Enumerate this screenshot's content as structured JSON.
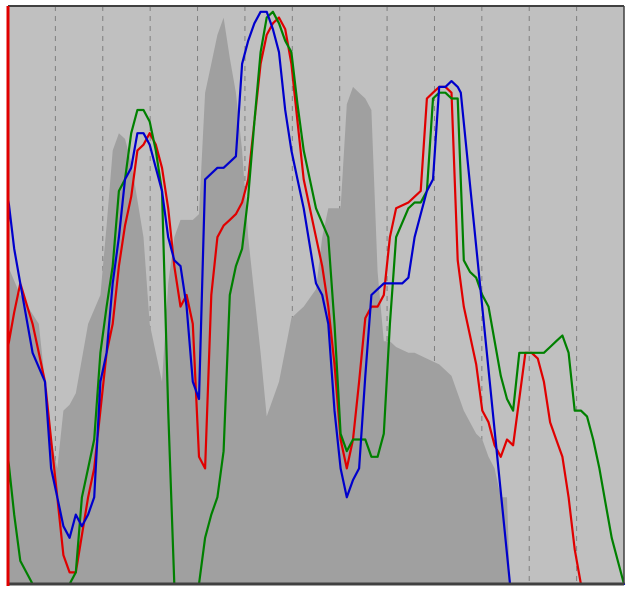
{
  "chart_data": {
    "type": "area",
    "title": "",
    "xlabel": "",
    "ylabel": "",
    "grid": {
      "vertical": true,
      "style": "dashed"
    },
    "legend": "none",
    "xlim": [
      0,
      100
    ],
    "ylim": [
      0,
      100
    ],
    "colors": {
      "plot_background": "#c0c0c0",
      "area_fill": "#a0a0a0",
      "grid": "#707070",
      "left_axis": "#e00000",
      "bottom_axis": "#404040",
      "top_axis": "#404040",
      "right_axis": "#404040"
    },
    "area": {
      "x": [
        0,
        2,
        5,
        7,
        8,
        9,
        10,
        11,
        13,
        15,
        16,
        17,
        18,
        19,
        20,
        22,
        23,
        24,
        25,
        26,
        27,
        28,
        29,
        30,
        31,
        32,
        33,
        34,
        35,
        36,
        37,
        38,
        39,
        40,
        41,
        42,
        44,
        46,
        47,
        48,
        50,
        51,
        52,
        53,
        54,
        55,
        56,
        57,
        58,
        59,
        60,
        61,
        62,
        63,
        65,
        66,
        68,
        70,
        71,
        72,
        74,
        75,
        76,
        77,
        78,
        79,
        80,
        81,
        81.5
      ],
      "y": [
        55,
        50,
        45,
        25,
        20,
        30,
        31,
        33,
        45,
        50,
        62,
        75,
        78,
        77,
        73,
        60,
        45,
        40,
        35,
        52,
        60,
        63,
        63,
        63,
        64,
        85,
        90,
        95,
        98,
        91,
        85,
        75,
        60,
        50,
        40,
        29,
        35,
        46,
        47,
        48,
        51,
        60,
        65,
        65,
        65,
        83,
        86,
        85,
        84,
        82,
        54,
        42,
        42,
        41,
        40,
        40,
        39,
        38,
        37,
        36,
        30,
        28,
        26,
        25,
        22,
        20,
        15,
        15,
        0
      ]
    },
    "series": [
      {
        "color": "#e00000",
        "x": [
          0,
          1,
          2,
          4,
          6,
          7,
          8,
          9,
          10,
          11,
          13,
          14,
          15,
          16,
          17,
          18,
          19,
          20,
          21,
          22,
          23,
          24,
          25,
          26,
          27,
          28,
          29,
          30,
          31,
          32,
          33,
          34,
          35,
          36,
          37,
          38,
          39,
          40,
          41,
          42,
          43,
          44,
          45,
          46,
          47,
          48,
          50,
          51,
          52,
          53,
          54,
          55,
          56,
          57,
          58,
          59,
          60,
          61,
          62,
          63,
          65,
          66,
          67,
          68,
          69,
          70,
          71,
          72,
          73,
          74,
          75,
          76,
          77,
          78,
          79,
          80,
          81,
          82,
          84,
          85,
          86,
          87,
          88,
          89,
          90,
          91,
          92,
          93,
          94
        ],
        "y": [
          41,
          47,
          52,
          45,
          35,
          25,
          15,
          5,
          2,
          2,
          15,
          20,
          30,
          40,
          45,
          55,
          62,
          67,
          75,
          76,
          78,
          76,
          72,
          65,
          55,
          48,
          50,
          45,
          22,
          20,
          50,
          60,
          62,
          63,
          64,
          66,
          70,
          80,
          90,
          95,
          97,
          98,
          96,
          90,
          80,
          70,
          60,
          55,
          48,
          38,
          25,
          20,
          25,
          35,
          46,
          48,
          48,
          50,
          60,
          65,
          66,
          67,
          68,
          84,
          85,
          86,
          86,
          85,
          56,
          48,
          43,
          38,
          30,
          28,
          24,
          22,
          25,
          24,
          40,
          40,
          39,
          35,
          28,
          25,
          22,
          15,
          6,
          0,
          0
        ]
      },
      {
        "color": "#008000",
        "x": [
          0,
          1,
          2,
          4,
          6,
          8,
          9,
          10,
          11,
          12,
          13,
          14,
          15,
          16,
          17,
          18,
          19,
          20,
          21,
          22,
          23,
          24,
          25,
          26,
          27,
          28,
          29,
          30,
          31,
          32,
          33,
          34,
          35,
          36,
          37,
          38,
          39,
          40,
          41,
          42,
          43,
          44,
          45,
          46,
          47,
          48,
          50,
          52,
          53,
          54,
          55,
          56,
          57,
          58,
          59,
          60,
          61,
          62,
          63,
          65,
          66,
          67,
          68,
          69,
          70,
          71,
          72,
          73,
          74,
          75,
          76,
          77,
          78,
          80,
          81,
          82,
          83,
          84,
          85,
          86,
          87,
          88,
          89,
          90,
          91,
          92,
          93,
          94,
          95,
          96,
          97,
          98,
          99,
          100
        ],
        "y": [
          22,
          12,
          4,
          0,
          0,
          0,
          0,
          0,
          2,
          15,
          20,
          25,
          40,
          48,
          55,
          68,
          70,
          78,
          82,
          82,
          80,
          75,
          68,
          30,
          0,
          0,
          0,
          0,
          0,
          8,
          12,
          15,
          23,
          50,
          55,
          58,
          67,
          80,
          92,
          98,
          99,
          97,
          94,
          92,
          83,
          75,
          65,
          60,
          45,
          26,
          23,
          25,
          25,
          25,
          22,
          22,
          26,
          45,
          60,
          65,
          66,
          66,
          68,
          84,
          85,
          85,
          84,
          84,
          56,
          54,
          53,
          50,
          48,
          36,
          32,
          30,
          40,
          40,
          40,
          40,
          40,
          41,
          42,
          43,
          40,
          30,
          30,
          29,
          25,
          20,
          14,
          8,
          4,
          0
        ]
      },
      {
        "color": "#0000cc",
        "x": [
          0,
          1,
          2,
          4,
          6,
          7,
          8,
          9,
          10,
          11,
          12,
          13,
          14,
          15,
          16,
          17,
          18,
          19,
          20,
          21,
          22,
          23,
          24,
          25,
          26,
          27,
          28,
          29,
          30,
          31,
          32,
          33,
          34,
          35,
          36,
          37,
          38,
          39,
          40,
          41,
          42,
          43,
          44,
          45,
          46,
          47,
          48,
          50,
          51,
          52,
          53,
          54,
          55,
          56,
          57,
          58,
          59,
          60,
          61,
          62,
          63,
          64,
          65,
          66,
          67,
          68,
          69,
          70,
          71,
          72,
          73,
          73.5,
          81.5,
          100
        ],
        "y": [
          67,
          58,
          52,
          40,
          35,
          20,
          15,
          10,
          8,
          12,
          10,
          12,
          15,
          35,
          40,
          52,
          60,
          70,
          72,
          78,
          78,
          76,
          72,
          68,
          60,
          56,
          55,
          48,
          35,
          32,
          70,
          71,
          72,
          72,
          73,
          74,
          90,
          94,
          97,
          99,
          99,
          96,
          92,
          82,
          75,
          70,
          65,
          52,
          50,
          45,
          30,
          20,
          15,
          18,
          20,
          36,
          50,
          51,
          52,
          52,
          52,
          52,
          53,
          60,
          64,
          68,
          70,
          86,
          86,
          87,
          86,
          85,
          0,
          0
        ]
      }
    ]
  }
}
